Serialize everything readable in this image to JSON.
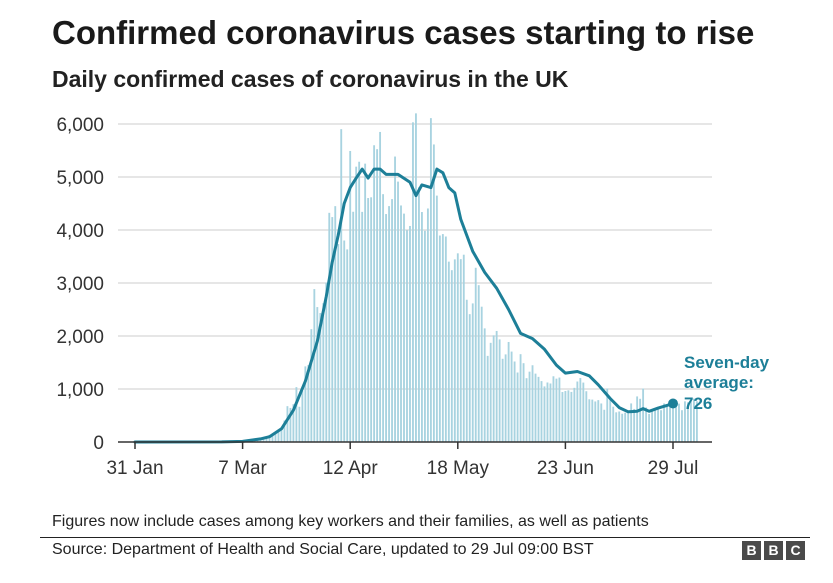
{
  "header": {
    "title": "Confirmed coronavirus cases starting to rise",
    "subtitle": "Daily confirmed cases of coronavirus in the UK"
  },
  "footer": {
    "footnote": "Figures now include cases among key workers and their families, as well as patients",
    "source": "Source: Department of Health and Social Care, updated to 29 Jul 09:00 BST",
    "logo_letters": [
      "B",
      "B",
      "C"
    ]
  },
  "colors": {
    "bars": "#a8d3e0",
    "average_line": "#1d7f98",
    "annotation": "#1d7f98",
    "grid": "#cccccc"
  },
  "chart_data": {
    "type": "bar",
    "title": "",
    "xlabel": "",
    "ylabel": "",
    "ylim": [
      0,
      6000
    ],
    "grid": true,
    "yticks": [
      0,
      1000,
      2000,
      3000,
      4000,
      5000,
      6000
    ],
    "ytick_labels": [
      "0",
      "1,000",
      "2,000",
      "3,000",
      "4,000",
      "5,000",
      "6,000"
    ],
    "xticks": [
      "2020-01-31",
      "2020-03-07",
      "2020-04-12",
      "2020-05-18",
      "2020-06-23",
      "2020-07-29"
    ],
    "xtick_labels": [
      "31 Jan",
      "7 Mar",
      "12 Apr",
      "18 May",
      "23 Jun",
      "29 Jul"
    ],
    "x_start": "2020-01-31",
    "x_end": "2020-07-29",
    "daily_cases": {
      "start_date": "2020-01-31",
      "values": [
        2,
        0,
        0,
        0,
        0,
        0,
        1,
        0,
        0,
        1,
        4,
        0,
        1,
        0,
        0,
        0,
        0,
        0,
        0,
        0,
        0,
        0,
        0,
        0,
        0,
        4,
        0,
        0,
        3,
        2,
        5,
        4,
        7,
        13,
        4,
        11,
        34,
        30,
        48,
        43,
        67,
        46,
        50,
        52,
        83,
        134,
        117,
        152,
        208,
        251,
        407,
        676,
        643,
        714,
        1035,
        665,
        967,
        1427,
        1452,
        2129,
        2885,
        2546,
        2433,
        2619,
        3009,
        4324,
        4244,
        4450,
        3735,
        5903,
        3802,
        3634,
        5491,
        4344,
        5195,
        5288,
        4342,
        5252,
        4603,
        4617,
        5599,
        5525,
        5850,
        4676,
        4301,
        4451,
        4583,
        5386,
        4913,
        4463,
        4309,
        3996,
        4076,
        6032,
        6201,
        4806,
        4339,
        3985,
        4406,
        6111,
        5614,
        4649,
        3896,
        3923,
        3877,
        3403,
        3242,
        3446,
        3560,
        3450,
        3534,
        2684,
        2412,
        2615,
        3287,
        2959,
        2553,
        2144,
        1625,
        1871,
        2013,
        2095,
        1936,
        1570,
        1653,
        1887,
        1706,
        1519,
        1311,
        1657,
        1487,
        1204,
        1327,
        1448,
        1290,
        1229,
        1149,
        1049,
        1123,
        1104,
        1240,
        1195,
        1216,
        943,
        962,
        975,
        945,
        1022,
        1141,
        1207,
        1121,
        958,
        806,
        800,
        765,
        790,
        727,
        608,
        1010,
        832,
        666,
        560,
        576,
        533,
        552,
        581,
        728,
        624,
        860,
        815,
        1009,
        651,
        530,
        581,
        597,
        615,
        600,
        727,
        663,
        673,
        638,
        794,
        724,
        600,
        767,
        748,
        797,
        819,
        768
      ]
    },
    "series": [
      {
        "name": "Seven-day average",
        "points": [
          [
            "2020-01-31",
            0
          ],
          [
            "2020-02-29",
            2
          ],
          [
            "2020-03-07",
            12
          ],
          [
            "2020-03-13",
            58
          ],
          [
            "2020-03-16",
            100
          ],
          [
            "2020-03-20",
            250
          ],
          [
            "2020-03-24",
            600
          ],
          [
            "2020-03-28",
            1150
          ],
          [
            "2020-04-01",
            1900
          ],
          [
            "2020-04-04",
            2750
          ],
          [
            "2020-04-06",
            3400
          ],
          [
            "2020-04-08",
            3900
          ],
          [
            "2020-04-10",
            4500
          ],
          [
            "2020-04-12",
            4800
          ],
          [
            "2020-04-14",
            4980
          ],
          [
            "2020-04-16",
            5150
          ],
          [
            "2020-04-18",
            4980
          ],
          [
            "2020-04-20",
            5150
          ],
          [
            "2020-04-22",
            5150
          ],
          [
            "2020-04-24",
            5050
          ],
          [
            "2020-04-28",
            5050
          ],
          [
            "2020-05-02",
            4900
          ],
          [
            "2020-05-04",
            4650
          ],
          [
            "2020-05-06",
            4850
          ],
          [
            "2020-05-09",
            4800
          ],
          [
            "2020-05-11",
            5150
          ],
          [
            "2020-05-13",
            5080
          ],
          [
            "2020-05-15",
            4800
          ],
          [
            "2020-05-17",
            4700
          ],
          [
            "2020-05-19",
            4200
          ],
          [
            "2020-05-23",
            3600
          ],
          [
            "2020-05-27",
            3200
          ],
          [
            "2020-05-31",
            2900
          ],
          [
            "2020-06-04",
            2500
          ],
          [
            "2020-06-08",
            2050
          ],
          [
            "2020-06-12",
            1950
          ],
          [
            "2020-06-16",
            1750
          ],
          [
            "2020-06-20",
            1450
          ],
          [
            "2020-06-23",
            1300
          ],
          [
            "2020-06-27",
            1330
          ],
          [
            "2020-07-01",
            1250
          ],
          [
            "2020-07-04",
            1080
          ],
          [
            "2020-07-08",
            820
          ],
          [
            "2020-07-11",
            650
          ],
          [
            "2020-07-14",
            570
          ],
          [
            "2020-07-17",
            580
          ],
          [
            "2020-07-19",
            630
          ],
          [
            "2020-07-21",
            580
          ],
          [
            "2020-07-24",
            640
          ],
          [
            "2020-07-27",
            690
          ],
          [
            "2020-07-29",
            726
          ]
        ]
      }
    ],
    "annotation": {
      "lines": [
        "Seven-day",
        "average:",
        "726"
      ],
      "date": "2020-07-29",
      "value": 726
    }
  }
}
